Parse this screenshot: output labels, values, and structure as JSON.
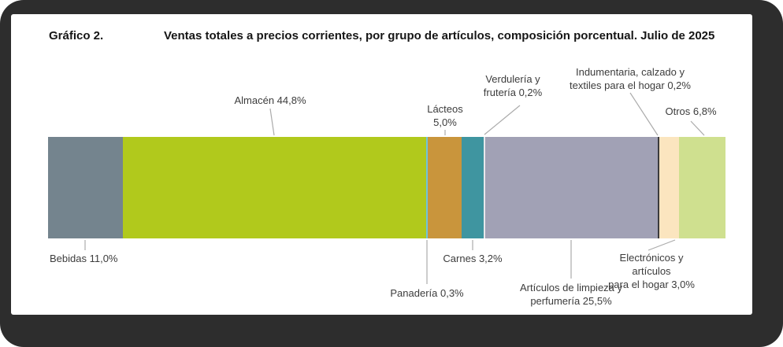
{
  "figure": {
    "label": "Gráfico 2.",
    "title": "Ventas totales a precios corrientes, por grupo de artículos, composición porcentual. Julio de 2025"
  },
  "chart_data": {
    "type": "bar",
    "subtype": "horizontal-stacked-100percent",
    "title": "Ventas totales a precios corrientes, por grupo de artículos, composición porcentual. Julio de 2025",
    "unit": "%",
    "xlim": [
      0,
      100
    ],
    "grid": false,
    "legend": "none (direct callout labels)",
    "categories": [
      "Bebidas",
      "Almacén",
      "Panadería",
      "Lácteos",
      "Carnes",
      "Verdulería y frutería",
      "Artículos de limpieza y perfumería",
      "Indumentaria, calzado y textiles para el hogar",
      "Electrónicos y artículos para el hogar",
      "Otros"
    ],
    "values": [
      11.0,
      44.8,
      0.3,
      5.0,
      3.2,
      0.2,
      25.5,
      0.2,
      3.0,
      6.8
    ],
    "colors": [
      "#74848e",
      "#b1c91c",
      "#6fc4db",
      "#c9953c",
      "#3f95a0",
      "#e8e8ec",
      "#a1a1b5",
      "#3a3a3c",
      "#fbe5bf",
      "#cfe08f"
    ],
    "segment_keys": [
      "bebidas",
      "almacen",
      "panaderia",
      "lacteos",
      "carnes",
      "verduleria",
      "limpieza",
      "indumentaria",
      "electronicos",
      "otros"
    ]
  },
  "callouts": [
    {
      "id": "almacen",
      "text": "Almacén 44,8%"
    },
    {
      "id": "lacteos",
      "text": "Lácteos\n5,0%"
    },
    {
      "id": "verduleria",
      "text": "Verdulería y\nfrutería 0,2%"
    },
    {
      "id": "indumentaria",
      "text": "Indumentaria, calzado y\ntextiles para el hogar 0,2%"
    },
    {
      "id": "otros",
      "text": "Otros 6,8%"
    },
    {
      "id": "bebidas",
      "text": "Bebidas 11,0%"
    },
    {
      "id": "carnes",
      "text": "Carnes 3,2%"
    },
    {
      "id": "panaderia",
      "text": "Panadería 0,3%"
    },
    {
      "id": "limpieza",
      "text": "Artículos de limpieza y\nperfumería 25,5%"
    },
    {
      "id": "electronicos",
      "text": "Electrónicos y artículos\npara el hogar 3,0%"
    }
  ]
}
